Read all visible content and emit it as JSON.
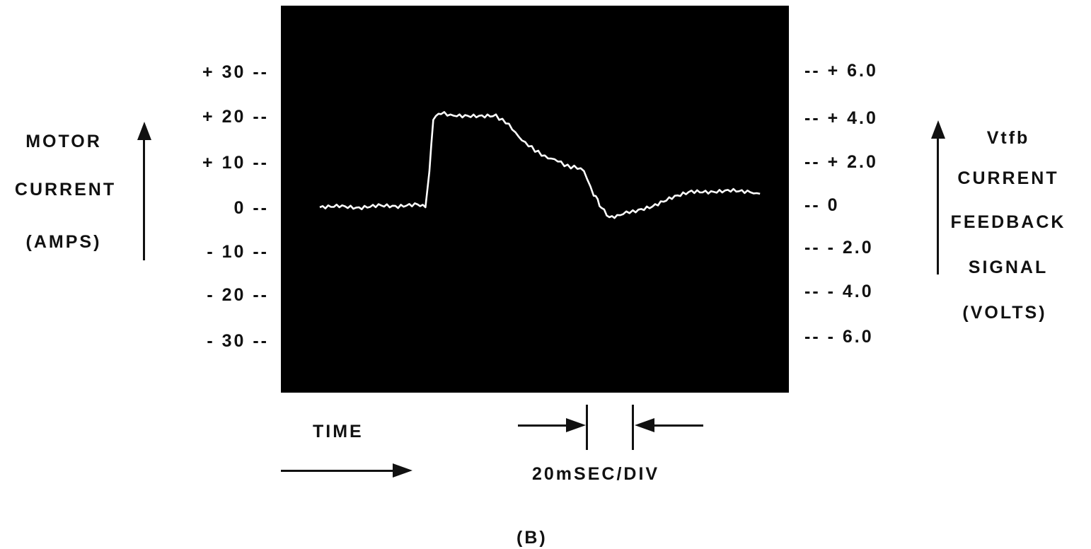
{
  "chart_data": {
    "type": "line",
    "title": "",
    "panel_label": "(B)",
    "left_axis": {
      "label_lines": [
        "MOTOR",
        "CURRENT",
        "(AMPS)"
      ],
      "unit": "AMPS",
      "range": [
        -30,
        30
      ],
      "tick_labels": [
        "+ 30 --",
        "+ 20 --",
        "+ 10 --",
        "0 --",
        "- 10 --",
        "- 20 --",
        "- 30 --"
      ]
    },
    "right_axis": {
      "label_lines": [
        "Vtfb",
        "CURRENT",
        "FEEDBACK",
        "SIGNAL",
        "(VOLTS)"
      ],
      "unit": "VOLTS",
      "range": [
        -6.0,
        6.0
      ],
      "tick_labels": [
        "-- + 6.0",
        "-- + 4.0",
        "-- + 2.0",
        "-- 0",
        "-- - 2.0",
        "-- - 4.0",
        "-- - 6.0"
      ]
    },
    "x_axis": {
      "label": "TIME",
      "scale_label": "20mSEC/DIV",
      "unit": "ms",
      "range": [
        0,
        230
      ]
    },
    "grid": false,
    "background": "#000000",
    "trace_color": "#ffffff",
    "series": [
      {
        "x": [
          0,
          10,
          20,
          30,
          40,
          50,
          54,
          56,
          58,
          62,
          70,
          80,
          90,
          95,
          100,
          105,
          110,
          115,
          120,
          125,
          130,
          135,
          140,
          142,
          144,
          148,
          152,
          155,
          160,
          170,
          180,
          190,
          200,
          210,
          220,
          225
        ],
        "y": [
          0,
          0.5,
          0,
          0.5,
          0,
          0.5,
          0,
          8,
          20,
          21,
          20.5,
          20.5,
          20.5,
          19,
          16.5,
          14.5,
          12.5,
          11.5,
          10.5,
          9.5,
          9,
          8,
          3,
          1.5,
          0,
          -2.5,
          -2,
          -1.5,
          -1,
          0,
          2,
          3.5,
          3.5,
          4,
          3.5,
          3
        ]
      }
    ]
  }
}
